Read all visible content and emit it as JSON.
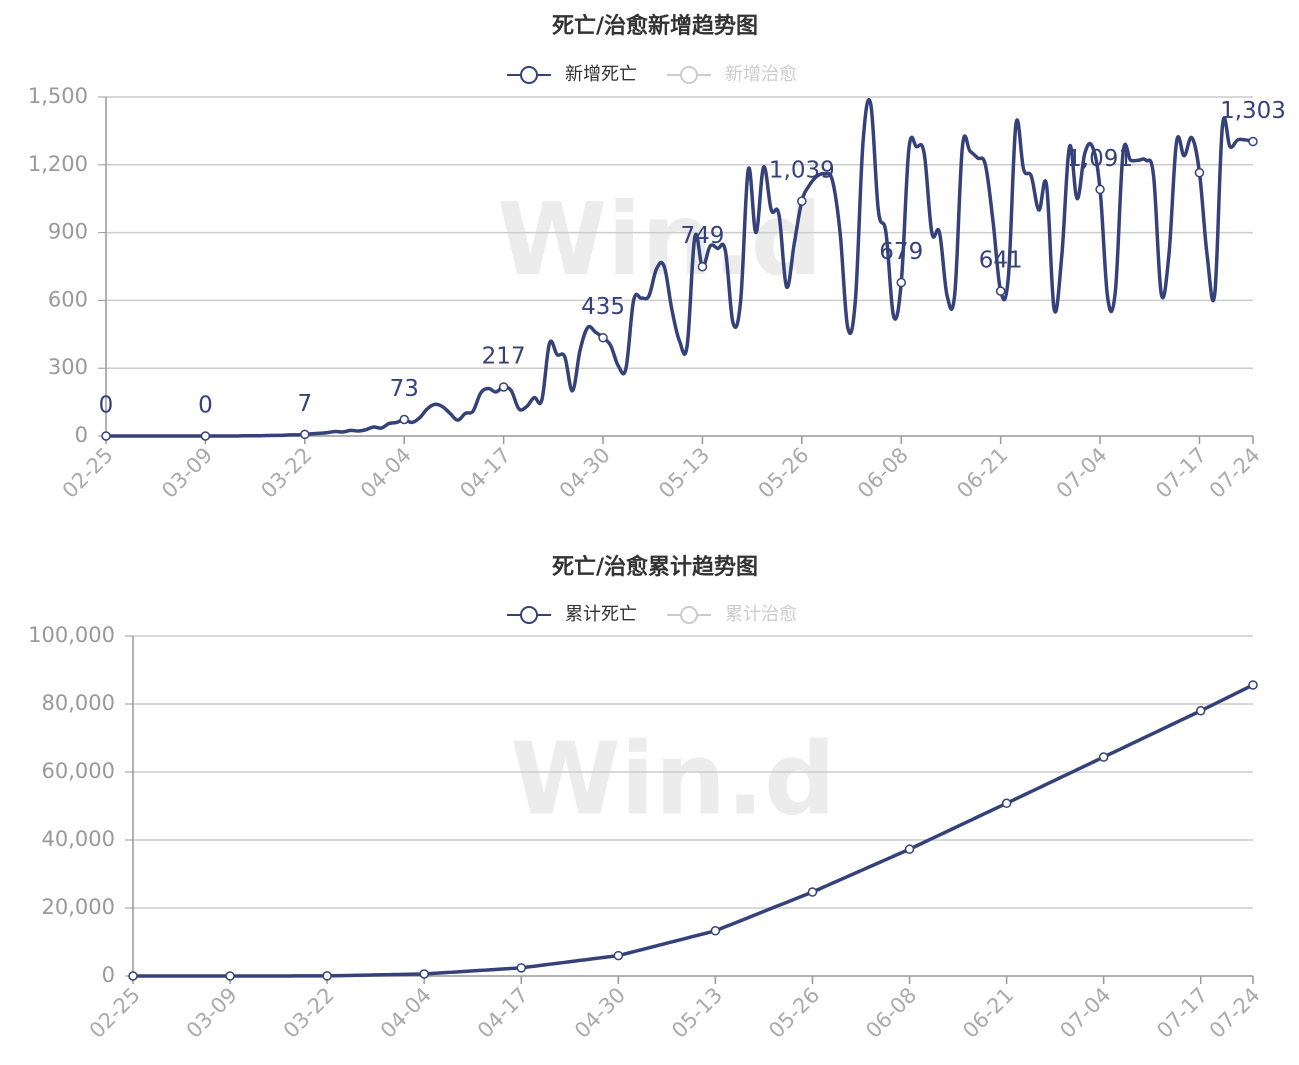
{
  "chart_data": [
    {
      "type": "line",
      "title": "死亡/治愈新增趋势图",
      "watermark": "Win.d",
      "categories": [
        "02-25",
        null,
        null,
        null,
        null,
        null,
        null,
        null,
        null,
        null,
        null,
        null,
        null,
        "03-09",
        null,
        null,
        null,
        null,
        null,
        null,
        null,
        null,
        null,
        null,
        null,
        null,
        "03-22",
        null,
        null,
        null,
        null,
        null,
        null,
        null,
        null,
        null,
        null,
        null,
        null,
        "04-04",
        null,
        null,
        null,
        null,
        null,
        null,
        null,
        null,
        null,
        null,
        null,
        null,
        "04-17",
        null,
        null,
        null,
        null,
        null,
        null,
        null,
        null,
        null,
        null,
        null,
        null,
        "04-30",
        null,
        null,
        null,
        null,
        null,
        null,
        null,
        null,
        null,
        null,
        null,
        null,
        "05-13",
        null,
        null,
        null,
        null,
        null,
        null,
        null,
        null,
        null,
        null,
        null,
        null,
        "05-26",
        null,
        null,
        null,
        null,
        null,
        null,
        null,
        null,
        null,
        null,
        null,
        null,
        "06-08",
        null,
        null,
        null,
        null,
        null,
        null,
        null,
        null,
        null,
        null,
        null,
        null,
        "06-21",
        null,
        null,
        null,
        null,
        null,
        null,
        null,
        null,
        null,
        null,
        null,
        null,
        "07-04",
        null,
        null,
        null,
        null,
        null,
        null,
        null,
        null,
        null,
        null,
        null,
        null,
        "07-17",
        null,
        null,
        null,
        null,
        null,
        null,
        "07-24"
      ],
      "series": [
        {
          "name": "新增死亡",
          "color": "#35427a",
          "visible": true,
          "values": [
            0,
            0,
            0,
            0,
            0,
            0,
            0,
            0,
            0,
            0,
            0,
            0,
            0,
            0,
            0,
            0,
            0,
            0,
            1,
            1,
            1,
            2,
            3,
            3,
            5,
            5,
            7,
            10,
            12,
            15,
            20,
            18,
            25,
            22,
            28,
            40,
            35,
            55,
            60,
            73,
            60,
            80,
            120,
            140,
            130,
            100,
            70,
            100,
            110,
            190,
            210,
            195,
            217,
            200,
            120,
            130,
            170,
            160,
            410,
            360,
            350,
            200,
            380,
            480,
            460,
            435,
            400,
            310,
            300,
            600,
            610,
            620,
            740,
            750,
            560,
            420,
            400,
            880,
            749,
            840,
            830,
            820,
            500,
            600,
            1180,
            900,
            1190,
            1000,
            980,
            660,
            850,
            1039,
            1110,
            1150,
            1160,
            1130,
            900,
            480,
            600,
            1300,
            1470,
            1000,
            900,
            530,
            679,
            1270,
            1280,
            1250,
            900,
            900,
            620,
            630,
            1280,
            1260,
            1230,
            1200,
            950,
            641,
            700,
            1380,
            1180,
            1150,
            1000,
            1110,
            560,
            800,
            1280,
            1050,
            1250,
            1280,
            1091,
            610,
            640,
            1250,
            1220,
            1220,
            1220,
            1150,
            630,
            800,
            1300,
            1240,
            1320,
            1165,
            800,
            630,
            1370,
            1280,
            1310,
            1310,
            1303
          ],
          "value_labels": [
            "0",
            null,
            null,
            null,
            null,
            null,
            null,
            null,
            null,
            null,
            null,
            null,
            null,
            "0",
            null,
            null,
            null,
            null,
            null,
            null,
            null,
            null,
            null,
            null,
            null,
            null,
            "7",
            null,
            null,
            null,
            null,
            null,
            null,
            null,
            null,
            null,
            null,
            null,
            null,
            "73",
            null,
            null,
            null,
            null,
            null,
            null,
            null,
            null,
            null,
            null,
            null,
            null,
            "217",
            null,
            null,
            null,
            null,
            null,
            null,
            null,
            null,
            null,
            null,
            null,
            null,
            "435",
            null,
            null,
            null,
            null,
            null,
            null,
            null,
            null,
            null,
            null,
            null,
            null,
            "749",
            null,
            null,
            null,
            null,
            null,
            null,
            null,
            null,
            null,
            null,
            null,
            null,
            "1,039",
            null,
            null,
            null,
            null,
            null,
            null,
            null,
            null,
            null,
            null,
            null,
            null,
            "679",
            null,
            null,
            null,
            null,
            null,
            null,
            null,
            null,
            null,
            null,
            null,
            null,
            "641",
            null,
            null,
            null,
            null,
            null,
            null,
            null,
            null,
            null,
            null,
            null,
            null,
            "1,091",
            null,
            null,
            null,
            null,
            null,
            null,
            null,
            null,
            null,
            null,
            null,
            null,
            null,
            null,
            null,
            null,
            null,
            null,
            null,
            "1,303"
          ]
        },
        {
          "name": "新增治愈",
          "color": "#cccccc",
          "visible": false
        }
      ],
      "ylim": [
        0,
        1500
      ],
      "yticks": [
        0,
        300,
        600,
        900,
        {
          "value": 1200,
          "label": "1,200"
        },
        {
          "value": 1500,
          "label": "1,500"
        }
      ],
      "grid": true
    },
    {
      "type": "line",
      "title": "死亡/治愈累计趋势图",
      "watermark": "Win.d",
      "categories": [
        "02-25",
        null,
        null,
        null,
        null,
        null,
        null,
        null,
        null,
        null,
        null,
        null,
        null,
        "03-09",
        null,
        null,
        null,
        null,
        null,
        null,
        null,
        null,
        null,
        null,
        null,
        null,
        "03-22",
        null,
        null,
        null,
        null,
        null,
        null,
        null,
        null,
        null,
        null,
        null,
        null,
        "04-04",
        null,
        null,
        null,
        null,
        null,
        null,
        null,
        null,
        null,
        null,
        null,
        null,
        "04-17",
        null,
        null,
        null,
        null,
        null,
        null,
        null,
        null,
        null,
        null,
        null,
        null,
        "04-30",
        null,
        null,
        null,
        null,
        null,
        null,
        null,
        null,
        null,
        null,
        null,
        null,
        "05-13",
        null,
        null,
        null,
        null,
        null,
        null,
        null,
        null,
        null,
        null,
        null,
        null,
        "05-26",
        null,
        null,
        null,
        null,
        null,
        null,
        null,
        null,
        null,
        null,
        null,
        null,
        "06-08",
        null,
        null,
        null,
        null,
        null,
        null,
        null,
        null,
        null,
        null,
        null,
        null,
        "06-21",
        null,
        null,
        null,
        null,
        null,
        null,
        null,
        null,
        null,
        null,
        null,
        null,
        "07-04",
        null,
        null,
        null,
        null,
        null,
        null,
        null,
        null,
        null,
        null,
        null,
        null,
        "07-17",
        null,
        null,
        null,
        null,
        null,
        null,
        "07-24"
      ],
      "series": [
        {
          "name": "累计死亡",
          "color": "#35427a",
          "visible": true,
          "values": [
            0,
            0,
            0,
            0,
            0,
            0,
            0,
            0,
            0,
            0,
            0,
            0,
            0,
            0,
            2,
            5,
            7,
            9,
            12,
            14,
            16,
            18,
            21,
            23,
            25,
            28,
            30,
            74,
            118,
            162,
            206,
            250,
            294,
            338,
            382,
            426,
            470,
            514,
            558,
            600,
            740,
            880,
            1020,
            1150,
            1290,
            1430,
            1570,
            1710,
            1850,
            1980,
            2120,
            2260,
            2400,
            2680,
            2950,
            3230,
            3510,
            3780,
            4060,
            4340,
            4620,
            4890,
            5170,
            5450,
            5720,
            6000,
            6560,
            7120,
            7680,
            8250,
            8810,
            9370,
            9930,
            10490,
            11050,
            11620,
            12180,
            12740,
            13300,
            14180,
            15050,
            15930,
            16810,
            17680,
            18560,
            19440,
            20320,
            21190,
            22070,
            22950,
            23820,
            24700,
            25670,
            26640,
            27610,
            28580,
            29550,
            30520,
            31490,
            32460,
            33430,
            34390,
            35360,
            36330,
            37300,
            38340,
            39380,
            40420,
            41450,
            42490,
            43530,
            44570,
            45610,
            46650,
            47690,
            48720,
            49760,
            50800,
            51850,
            52890,
            53940,
            54980,
            56030,
            57080,
            58120,
            59170,
            60210,
            61260,
            62310,
            63350,
            64400,
            65450,
            66490,
            67540,
            68580,
            69630,
            70680,
            71720,
            72770,
            73820,
            74860,
            75910,
            76950,
            78000,
            79090,
            80170,
            81260,
            82340,
            83430,
            84510,
            85600
          ]
        },
        {
          "name": "累计治愈",
          "color": "#cccccc",
          "visible": false
        }
      ],
      "ylim": [
        0,
        100000
      ],
      "yticks": [
        0,
        {
          "value": 20000,
          "label": "20,000"
        },
        {
          "value": 40000,
          "label": "40,000"
        },
        {
          "value": 60000,
          "label": "60,000"
        },
        {
          "value": 80000,
          "label": "80,000"
        },
        {
          "value": 100000,
          "label": "100,000"
        }
      ],
      "grid": true
    }
  ]
}
